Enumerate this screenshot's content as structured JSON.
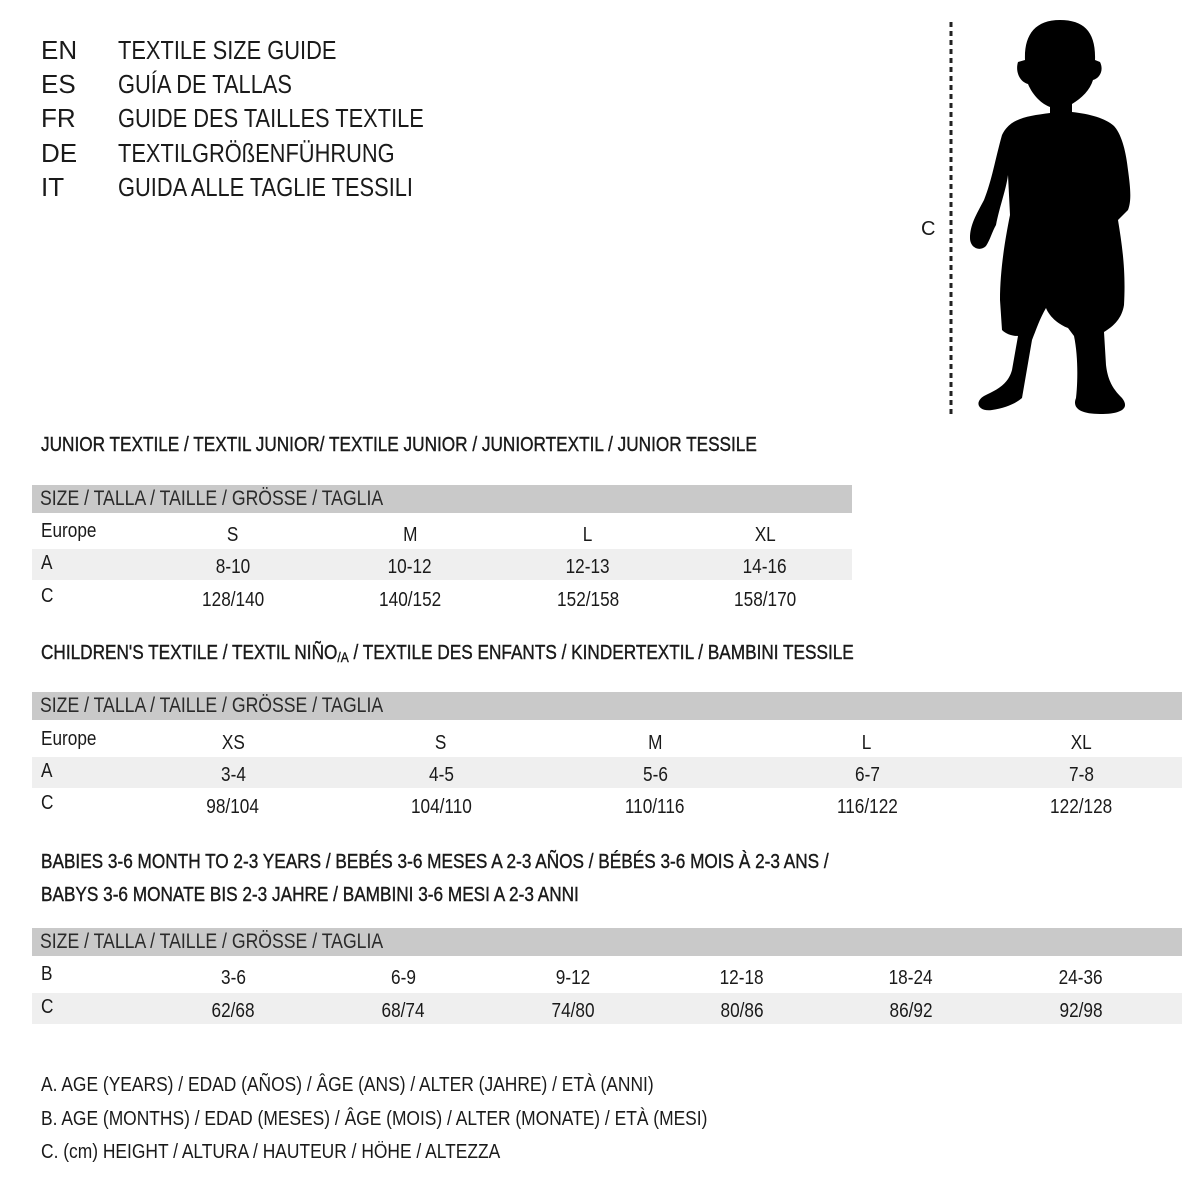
{
  "languages": [
    {
      "code": "EN",
      "text": "TEXTILE SIZE GUIDE"
    },
    {
      "code": "ES",
      "text": "GUÍA DE TALLAS"
    },
    {
      "code": "FR",
      "text": "GUIDE DES TAILLES TEXTILE"
    },
    {
      "code": "DE",
      "text": "TEXTILGRÖßENFÜHRUNG"
    },
    {
      "code": "IT",
      "text": "GUIDA ALLE TAGLIE TESSILI"
    }
  ],
  "figure": {
    "measure_label": "C",
    "icon": "child-silhouette"
  },
  "header_label": "SIZE / TALLA / TAILLE / GRÖSSE / TAGLIA",
  "colors": {
    "header_bar": "#c9c9c9",
    "alt_row": "#efefef"
  },
  "junior": {
    "title": "JUNIOR TEXTILE / TEXTIL JUNIOR/ TEXTILE JUNIOR / JUNIORTEXTIL / JUNIOR TESSILE",
    "rows": [
      {
        "label": "Europe",
        "values": [
          "S",
          "M",
          "L",
          "XL"
        ]
      },
      {
        "label": "A",
        "values": [
          "8-10",
          "10-12",
          "12-13",
          "14-16"
        ]
      },
      {
        "label": "C",
        "values": [
          "128/140",
          "140/152",
          "152/158",
          "158/170"
        ]
      }
    ]
  },
  "children": {
    "title_pre": "CHILDREN'S TEXTILE / TEXTIL NIÑO",
    "title_sub": "/A",
    "title_post": " / TEXTILE DES ENFANTS / KINDERTEXTIL / BAMBINI TESSILE",
    "rows": [
      {
        "label": "Europe",
        "values": [
          "XS",
          "S",
          "M",
          "L",
          "XL"
        ]
      },
      {
        "label": "A",
        "values": [
          "3-4",
          "4-5",
          "5-6",
          "6-7",
          "7-8"
        ]
      },
      {
        "label": "C",
        "values": [
          "98/104",
          "104/110",
          "110/116",
          "116/122",
          "122/128"
        ]
      }
    ]
  },
  "babies": {
    "title_line1": "BABIES 3-6 MONTH TO 2-3 YEARS / BEBÉS 3-6 MESES A 2-3 AÑOS / BÉBÉS 3-6 MOIS À 2-3 ANS /",
    "title_line2": "BABYS 3-6 MONATE BIS 2-3 JAHRE / BAMBINI 3-6 MESI A 2-3 ANNI",
    "rows": [
      {
        "label": "B",
        "values": [
          "3-6",
          "6-9",
          "9-12",
          "12-18",
          "18-24",
          "24-36"
        ]
      },
      {
        "label": "C",
        "values": [
          "62/68",
          "68/74",
          "74/80",
          "80/86",
          "86/92",
          "92/98"
        ]
      }
    ]
  },
  "legend": [
    "A. AGE (YEARS) / EDAD (AÑOS) / ÂGE (ANS) / ALTER (JAHRE) / ETÀ (ANNI)",
    "B. AGE (MONTHS) / EDAD (MESES) / ÂGE (MOIS) / ALTER (MONATE) / ETÀ (MESI)",
    "C. (cm) HEIGHT / ALTURA / HAUTEUR / HÖHE / ALTEZZA"
  ]
}
